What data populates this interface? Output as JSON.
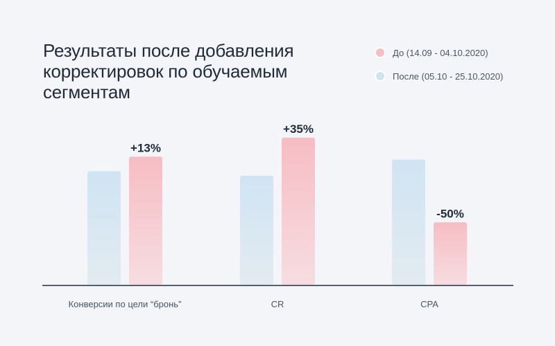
{
  "colors": {
    "before": "#f6bdc3",
    "before_light": "#f6dde1",
    "after": "#cfe4f3",
    "after_light": "#e3ebf1",
    "axis": "#1f2a3a"
  },
  "chart_data": {
    "type": "bar",
    "title": "Результаты после добавления корректировок по обучаемым сегментам",
    "categories": [
      "Конверсии по цели “бронь”",
      "CR",
      "CPA"
    ],
    "series": [
      {
        "name": "После (05.10 - 25.10.2020)",
        "key": "after",
        "values": [
          78,
          75,
          86
        ]
      },
      {
        "name": "До (14.09 - 04.10.2020)",
        "key": "before",
        "values": [
          88,
          101,
          43
        ]
      }
    ],
    "legend_order": [
      {
        "label": "До (14.09 - 04.10.2020)",
        "key": "before"
      },
      {
        "label": "После (05.10 - 25.10.2020)",
        "key": "after"
      }
    ],
    "annotations": [
      "+13%",
      "+35%",
      "-50%"
    ],
    "ylim": [
      0,
      110
    ],
    "xlabel": "",
    "ylabel": "",
    "grid": false,
    "legend_position": "top-right"
  }
}
